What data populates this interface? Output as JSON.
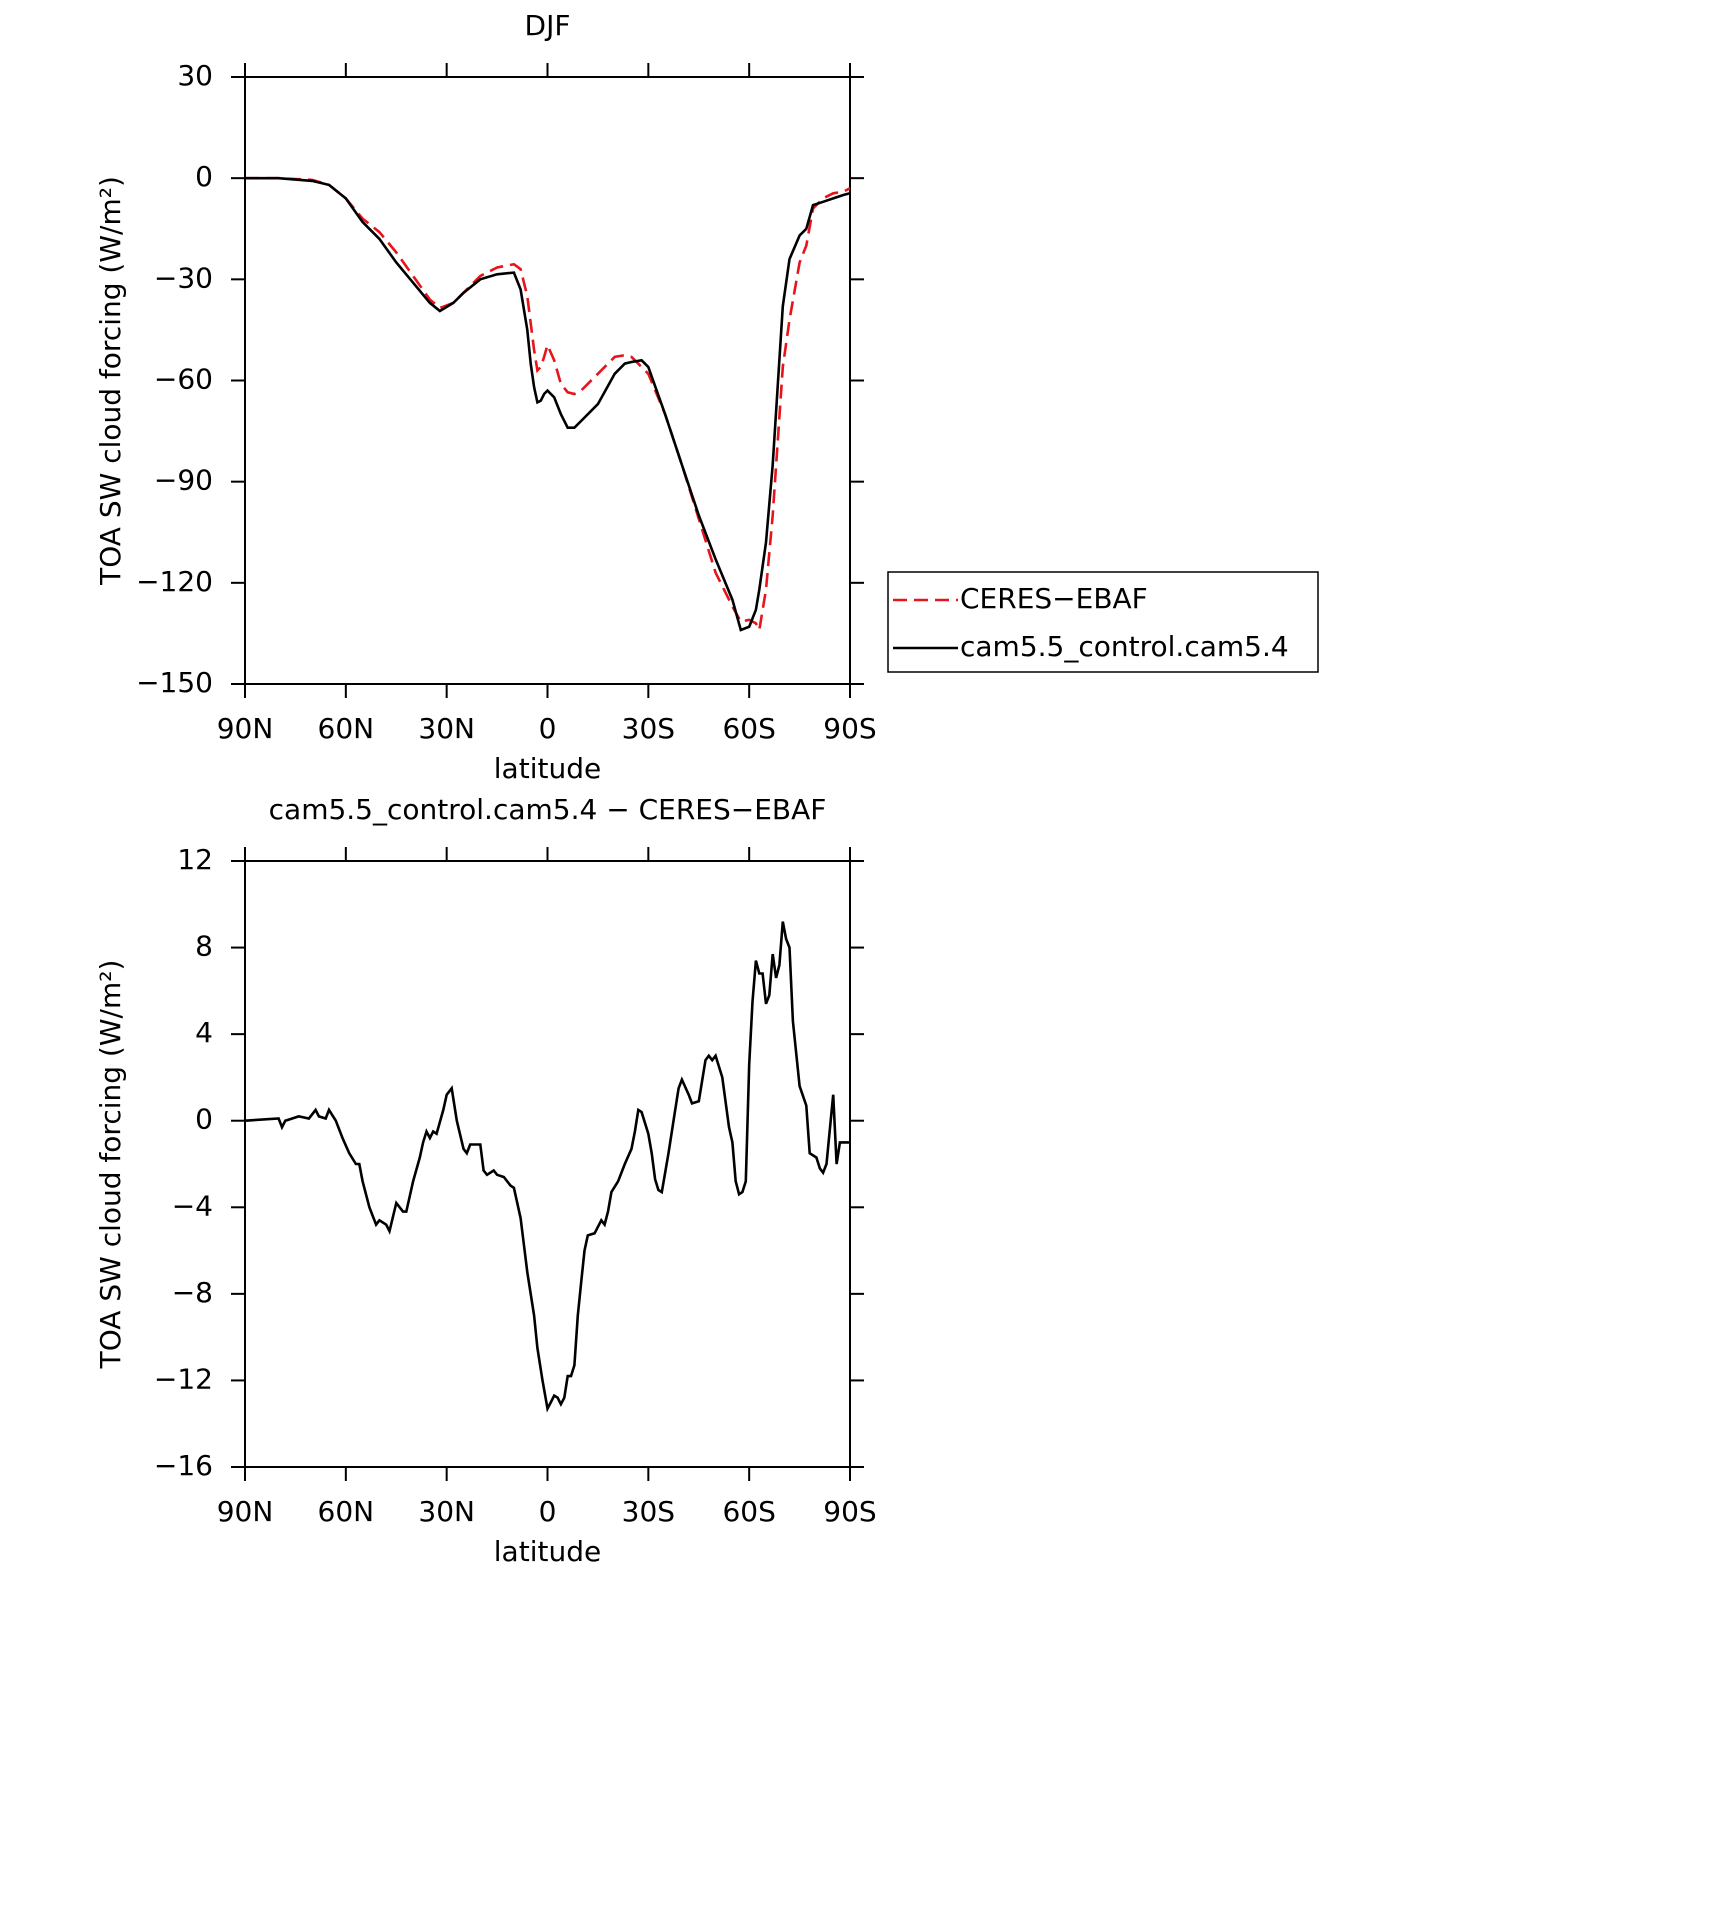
{
  "chart_data": [
    {
      "type": "line",
      "title": "DJF",
      "xlabel": "latitude",
      "ylabel": "TOA SW cloud forcing (W/m²)",
      "xlim": [
        90,
        -90
      ],
      "xticks": [
        {
          "value": 90,
          "label": "90N"
        },
        {
          "value": 60,
          "label": "60N"
        },
        {
          "value": 30,
          "label": "30N"
        },
        0,
        {
          "value": -30,
          "label": "30S"
        },
        {
          "value": -60,
          "label": "60S"
        },
        {
          "value": -90,
          "label": "90S"
        }
      ],
      "ylim": [
        -150,
        30
      ],
      "yticks": [
        {
          "value": -150,
          "label": "−150"
        },
        {
          "value": -120,
          "label": "−120"
        },
        {
          "value": -90,
          "label": "−90"
        },
        {
          "value": -60,
          "label": "−60"
        },
        {
          "value": -30,
          "label": "−30"
        },
        0,
        30
      ],
      "legend": "right",
      "x": [
        90,
        80,
        70,
        65,
        60,
        55,
        50,
        45,
        40,
        35,
        32,
        28,
        25,
        20,
        15,
        10,
        8,
        6,
        5,
        4,
        3,
        2,
        1,
        0,
        -2,
        -4,
        -6,
        -8,
        -10,
        -15,
        -20,
        -23,
        -25,
        -28,
        -30,
        -35,
        -40,
        -45,
        -50,
        -55,
        -57.5,
        -60,
        -62,
        -63,
        -65,
        -67,
        -70,
        -72,
        -75,
        -77,
        -79,
        -82,
        -85,
        -88,
        -90
      ],
      "series": [
        {
          "name": "CERES−EBAF",
          "color": "#e8141c",
          "dashed": true,
          "values": [
            0,
            0,
            -0.5,
            -2,
            -6,
            -12,
            -16,
            -22,
            -29,
            -36,
            -38.5,
            -37,
            -34,
            -29,
            -26.5,
            -25.5,
            -27,
            -35,
            -43,
            -51,
            -57,
            -56,
            -53,
            -49.5,
            -54,
            -61,
            -63.5,
            -64,
            -63,
            -58,
            -53,
            -52.5,
            -53,
            -56,
            -58,
            -70,
            -85,
            -101,
            -117,
            -127,
            -131.5,
            -131,
            -132,
            -134,
            -122,
            -100,
            -56,
            -42,
            -25,
            -20,
            -9,
            -6,
            -4.5,
            -4,
            -3
          ]
        },
        {
          "name": "cam5.5_control.cam5.4",
          "color": "#000000",
          "dashed": false,
          "values": [
            0,
            0,
            -0.8,
            -2,
            -6,
            -13,
            -18,
            -25,
            -31,
            -37,
            -39.4,
            -37,
            -34,
            -30,
            -28.5,
            -28,
            -33,
            -45,
            -55,
            -62,
            -66.5,
            -66,
            -64,
            -63,
            -65,
            -70,
            -74,
            -74,
            -72,
            -67,
            -58,
            -55,
            -54.5,
            -54,
            -56,
            -70,
            -85,
            -100,
            -113,
            -125,
            -134,
            -133,
            -128,
            -122,
            -108,
            -85,
            -38,
            -24,
            -17,
            -15,
            -8,
            -7,
            -6,
            -5,
            -4.5
          ]
        }
      ]
    },
    {
      "type": "line",
      "title": "cam5.5_control.cam5.4 − CERES−EBAF",
      "xlabel": "latitude",
      "ylabel": "TOA SW cloud forcing (W/m²)",
      "xlim": [
        90,
        -90
      ],
      "xticks": [
        {
          "value": 90,
          "label": "90N"
        },
        {
          "value": 60,
          "label": "60N"
        },
        {
          "value": 30,
          "label": "30N"
        },
        0,
        {
          "value": -30,
          "label": "30S"
        },
        {
          "value": -60,
          "label": "60S"
        },
        {
          "value": -90,
          "label": "90S"
        }
      ],
      "ylim": [
        -16,
        12
      ],
      "yticks": [
        {
          "value": -16,
          "label": "−16"
        },
        {
          "value": -12,
          "label": "−12"
        },
        {
          "value": -8,
          "label": "−8"
        },
        {
          "value": -4,
          "label": "−4"
        },
        0,
        4,
        8,
        12
      ],
      "x": [
        90,
        80,
        79,
        78,
        74,
        71,
        69,
        68,
        66,
        65,
        63,
        61,
        59,
        57,
        56,
        55,
        53,
        51,
        50,
        48,
        47,
        45,
        43,
        42,
        40,
        38,
        37,
        36,
        35,
        34,
        33,
        31,
        30,
        28.5,
        27,
        25,
        24,
        23,
        20,
        19,
        18,
        16,
        15,
        13,
        11,
        10,
        8,
        6,
        4,
        3,
        1.5,
        0,
        -1,
        -2,
        -3,
        -4,
        -5,
        -6,
        -7,
        -8,
        -9,
        -10,
        -11,
        -12,
        -14,
        -16,
        -17,
        -18,
        -19,
        -21,
        -23,
        -25,
        -26,
        -27,
        -28,
        -30,
        -31,
        -32,
        -33,
        -34,
        -36,
        -38,
        -39,
        -40,
        -42,
        -43,
        -45,
        -47,
        -48,
        -49,
        -50,
        -52,
        -54,
        -55,
        -56,
        -57,
        -58,
        -59,
        -60,
        -61,
        -62,
        -63,
        -64,
        -65,
        -66,
        -67,
        -68,
        -69,
        -70,
        -71,
        -72,
        -73,
        -75,
        -77,
        -78,
        -80,
        -81,
        -82,
        -83,
        -85,
        -86,
        -87,
        -90
      ],
      "series": [
        {
          "color": "#000000",
          "dashed": false,
          "values": [
            0,
            0.1,
            -0.3,
            0,
            0.2,
            0.1,
            0.5,
            0.2,
            0.1,
            0.5,
            0,
            -0.8,
            -1.5,
            -2,
            -2,
            -2.8,
            -4,
            -4.8,
            -4.6,
            -4.8,
            -5.1,
            -3.8,
            -4.2,
            -4.2,
            -2.8,
            -1.7,
            -1,
            -0.5,
            -0.8,
            -0.5,
            -0.6,
            0.5,
            1.2,
            1.5,
            0,
            -1.3,
            -1.5,
            -1.1,
            -1.1,
            -2.3,
            -2.5,
            -2.3,
            -2.5,
            -2.6,
            -3,
            -3.1,
            -4.5,
            -7,
            -9,
            -10.5,
            -12,
            -13.3,
            -13,
            -12.7,
            -12.8,
            -13.1,
            -12.8,
            -11.8,
            -11.8,
            -11.3,
            -9,
            -7.5,
            -6,
            -5.3,
            -5.2,
            -4.6,
            -4.8,
            -4.2,
            -3.3,
            -2.8,
            -2,
            -1.3,
            -0.5,
            0.5,
            0.4,
            -0.6,
            -1.5,
            -2.7,
            -3.2,
            -3.3,
            -1.5,
            0.5,
            1.5,
            1.9,
            1.2,
            0.8,
            0.9,
            2.8,
            3,
            2.8,
            3,
            2,
            -0.3,
            -1,
            -2.8,
            -3.4,
            -3.3,
            -2.8,
            2.6,
            5.5,
            7.4,
            6.8,
            6.8,
            5.4,
            5.8,
            7.7,
            6.6,
            7.2,
            9.2,
            8.4,
            8,
            4.6,
            1.6,
            0.7,
            -1.5,
            -1.7,
            -2.2,
            -2.4,
            -2,
            1.2,
            -2,
            -1,
            -1
          ]
        }
      ]
    }
  ]
}
